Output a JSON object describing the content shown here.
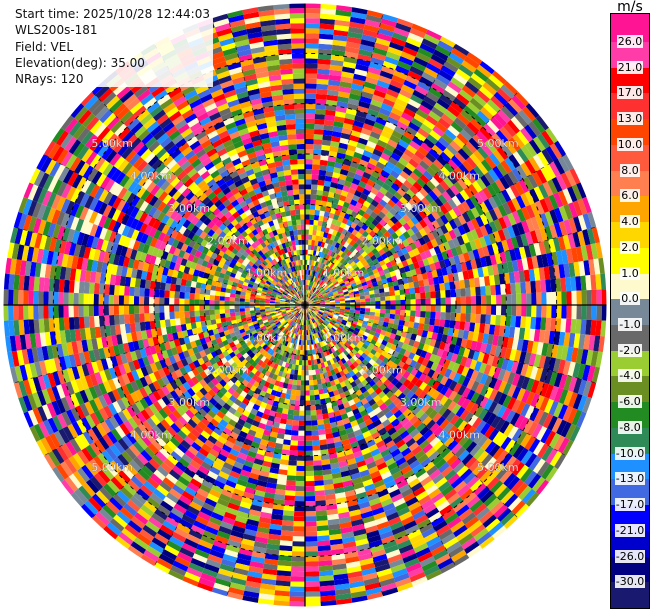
{
  "chart_data": {
    "type": "heatmap",
    "projection": "polar-ppi",
    "info": {
      "start_time": "Start time: 2025/10/28 12:44:03",
      "instrument": "WLS200s-181",
      "field": "Field: VEL",
      "elevation": "Elevation(deg): 35.00",
      "nrays": "NRays: 120"
    },
    "rays": 120,
    "max_range_km": 6.0,
    "range_gates": 60,
    "range_rings": [
      {
        "label": "1.00km",
        "value": 1.0
      },
      {
        "label": "2.00km",
        "value": 2.0
      },
      {
        "label": "3.00km",
        "value": 3.0
      },
      {
        "label": "4.00km",
        "value": 4.0
      },
      {
        "label": "5.00km",
        "value": 5.0
      }
    ],
    "colorbar": {
      "title": "m/s",
      "levels": [
        {
          "label": "26.0",
          "color": "#ff3ca8"
        },
        {
          "label": "21.0",
          "color": "#ff0000"
        },
        {
          "label": "17.0",
          "color": "#ff3030"
        },
        {
          "label": "13.0",
          "color": "#ff4500"
        },
        {
          "label": "10.0",
          "color": "#ff5a3c"
        },
        {
          "label": "8.0",
          "color": "#ff7f50"
        },
        {
          "label": "6.0",
          "color": "#ffa500"
        },
        {
          "label": "4.0",
          "color": "#ffd700"
        },
        {
          "label": "2.0",
          "color": "#ffff00"
        },
        {
          "label": "1.0",
          "color": "#fffacd"
        },
        {
          "label": "0.0",
          "color": "#778899"
        },
        {
          "label": "-1.0",
          "color": "#696969"
        },
        {
          "label": "-2.0",
          "color": "#9acd32"
        },
        {
          "label": "-4.0",
          "color": "#6b8e23"
        },
        {
          "label": "-6.0",
          "color": "#228b22"
        },
        {
          "label": "-8.0",
          "color": "#2e8b57"
        },
        {
          "label": "-10.0",
          "color": "#1e90ff"
        },
        {
          "label": "-13.0",
          "color": "#4169e1"
        },
        {
          "label": "-17.0",
          "color": "#0000ff"
        },
        {
          "label": "-21.0",
          "color": "#0000cd"
        },
        {
          "label": "-26.0",
          "color": "#000080"
        },
        {
          "label": "-30.0",
          "color": "#191970"
        }
      ]
    },
    "palette_top": "#ff1493",
    "grid": true
  }
}
